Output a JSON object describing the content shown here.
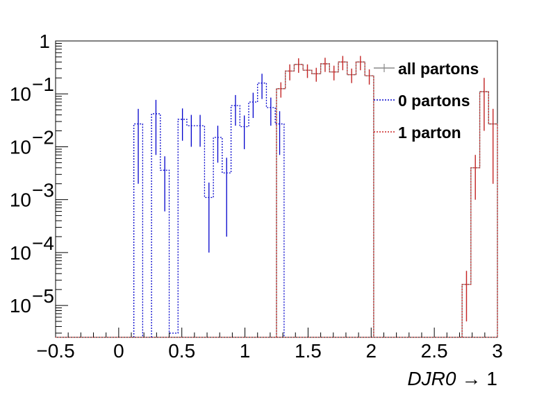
{
  "chart_data": {
    "type": "histogram",
    "title": "",
    "xlabel": {
      "var": "DJR0",
      "arrow": "→",
      "rest": "1"
    },
    "ylabel": "",
    "xlim": [
      -0.5,
      3.0
    ],
    "ylim": [
      2.5e-06,
      1.0
    ],
    "yscale": "log",
    "bin_width": 0.07,
    "x_ticks": [
      {
        "v": -0.5,
        "label": "−0.5"
      },
      {
        "v": 0,
        "label": "0"
      },
      {
        "v": 0.5,
        "label": "0.5"
      },
      {
        "v": 1,
        "label": "1"
      },
      {
        "v": 1.5,
        "label": "1.5"
      },
      {
        "v": 2,
        "label": "2"
      },
      {
        "v": 2.5,
        "label": "2.5"
      },
      {
        "v": 3,
        "label": "3"
      }
    ],
    "y_ticks": [
      {
        "v": 1,
        "base": "1",
        "exp": ""
      },
      {
        "v": 0.1,
        "base": "10",
        "exp": "−1"
      },
      {
        "v": 0.01,
        "base": "10",
        "exp": "−2"
      },
      {
        "v": 0.001,
        "base": "10",
        "exp": "−3"
      },
      {
        "v": 0.0001,
        "base": "10",
        "exp": "−4"
      },
      {
        "v": 1e-05,
        "base": "10",
        "exp": "−5"
      }
    ],
    "legend": {
      "position": "top-right",
      "entries": [
        "all partons",
        "0 partons",
        "1 parton"
      ]
    },
    "series": [
      {
        "name": "all partons",
        "color": "#888888",
        "style": "solid",
        "bins": [
          [
            1.25,
            0.125,
            0.04
          ],
          [
            1.32,
            0.27,
            0.09
          ],
          [
            1.39,
            0.36,
            0.11
          ],
          [
            1.46,
            0.28,
            0.08
          ],
          [
            1.53,
            0.24,
            0.07
          ],
          [
            1.6,
            0.37,
            0.11
          ],
          [
            1.67,
            0.26,
            0.08
          ],
          [
            1.74,
            0.4,
            0.12
          ],
          [
            1.81,
            0.23,
            0.07
          ],
          [
            1.88,
            0.4,
            0.12
          ],
          [
            1.95,
            0.22,
            0.07
          ],
          [
            2.72,
            2.5e-05,
            2e-05
          ],
          [
            2.79,
            0.004,
            0.003
          ],
          [
            2.86,
            0.11,
            0.09
          ],
          [
            2.93,
            0.027,
            0.025
          ]
        ]
      },
      {
        "name": "0 partons",
        "color": "#0000cc",
        "style": "dotted",
        "bins": [
          [
            0.12,
            0.027,
            0.025
          ],
          [
            0.26,
            0.042,
            0.035
          ],
          [
            0.33,
            0.0036,
            0.003
          ],
          [
            0.4,
            3e-06,
            0
          ],
          [
            0.47,
            0.033,
            0.02
          ],
          [
            0.54,
            0.025,
            0.015
          ],
          [
            0.61,
            0.025,
            0.015
          ],
          [
            0.68,
            0.0011,
            0.001
          ],
          [
            0.75,
            0.015,
            0.01
          ],
          [
            0.82,
            0.0032,
            0.003
          ],
          [
            0.89,
            0.06,
            0.035
          ],
          [
            0.96,
            0.024,
            0.015
          ],
          [
            1.03,
            0.07,
            0.035
          ],
          [
            1.1,
            0.16,
            0.08
          ],
          [
            1.17,
            0.055,
            0.03
          ],
          [
            1.24,
            0.027,
            0.02
          ]
        ]
      },
      {
        "name": "1 parton",
        "color": "#cc2222",
        "style": "dotted",
        "bins": [
          [
            1.25,
            0.125,
            0.04
          ],
          [
            1.32,
            0.27,
            0.09
          ],
          [
            1.39,
            0.36,
            0.11
          ],
          [
            1.46,
            0.28,
            0.08
          ],
          [
            1.53,
            0.24,
            0.07
          ],
          [
            1.6,
            0.37,
            0.11
          ],
          [
            1.67,
            0.26,
            0.08
          ],
          [
            1.74,
            0.4,
            0.12
          ],
          [
            1.81,
            0.23,
            0.07
          ],
          [
            1.88,
            0.4,
            0.12
          ],
          [
            1.95,
            0.22,
            0.07
          ],
          [
            2.72,
            2.5e-05,
            2e-05
          ],
          [
            2.79,
            0.004,
            0.003
          ],
          [
            2.86,
            0.11,
            0.09
          ],
          [
            2.93,
            0.027,
            0.025
          ]
        ]
      }
    ]
  }
}
